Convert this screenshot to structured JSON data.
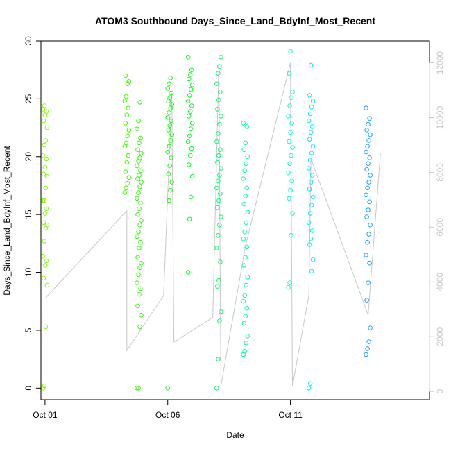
{
  "chart_data": {
    "type": "scatter",
    "title": "ATOM3 Southbound Days_Since_Land_BdyInf_Most_Recent",
    "xlabel": "Date",
    "ylabel": "Days_Since_Land_BdyInf_Most_Recent",
    "xlim": [
      "2014-09-30T20:00",
      "2014-10-16T16:00"
    ],
    "ylim": [
      -1,
      30
    ],
    "y2lim": [
      -300,
      12800
    ],
    "x_ticks": [
      {
        "at": "2014-10-01T00:00",
        "label": "Oct 01"
      },
      {
        "at": "2014-10-06T00:00",
        "label": "Oct 06"
      },
      {
        "at": "2014-10-11T00:00",
        "label": "Oct 11"
      }
    ],
    "y_ticks": [
      0,
      5,
      10,
      15,
      20,
      25,
      30
    ],
    "y2_ticks": [
      0,
      2000,
      4000,
      6000,
      8000,
      10000,
      12000
    ],
    "grid": false,
    "legend": "none",
    "point_color_range": [
      "#80ff00",
      "#00ff40",
      "#00ffcc",
      "#00e0ff",
      "#0088ff"
    ],
    "secondary_line_color": "#c8c8c8",
    "clusters": [
      {
        "t": "2014-10-01T00:00",
        "color": "#80ff00",
        "values": [
          0,
          0.2,
          5.3,
          8.9,
          9.5,
          10.6,
          11,
          11.4,
          12.7,
          13.8,
          14.1,
          14.3,
          15.1,
          15.5,
          16.2,
          16.2,
          17.3,
          18.3,
          18.5,
          19.1,
          19.8,
          20.1,
          21.0,
          21.4,
          22.5,
          23.1,
          23.6,
          23.9,
          24.1,
          24.4
        ]
      },
      {
        "t": "2014-10-04T08:00",
        "color": "#40ff00",
        "values": [
          16.9,
          17.3,
          17.7,
          18.2,
          18.7,
          19.5,
          20.1,
          20.9,
          21.2,
          21.8,
          22.3,
          22.9,
          23.6,
          24.2,
          24.8,
          25.2,
          26.3,
          26.5,
          27.0
        ]
      },
      {
        "t": "2014-10-04T20:00",
        "color": "#2bff00",
        "values": [
          0,
          0,
          5.3,
          6.3,
          7.1,
          8.1,
          8.6,
          9.1,
          9.8,
          10.4,
          10.8,
          11.3,
          12.1,
          12.6,
          13.1,
          13.5,
          14.1,
          14.5,
          15.0,
          15.5,
          16.0,
          16.4,
          16.9,
          17.4,
          17.8,
          18.1,
          18.4,
          18.8,
          19.2,
          19.6,
          19.9,
          20.3,
          20.6,
          21.2,
          21.6,
          22.4,
          23.1,
          24.7
        ]
      },
      {
        "t": "2014-10-06T02:00",
        "color": "#10ff10",
        "values": [
          0,
          16.2,
          17.1,
          17.8,
          18.5,
          19.2,
          19.9,
          20.4,
          20.9,
          21.4,
          21.9,
          22.3,
          22.7,
          23.1,
          23.4,
          23.8,
          24.2,
          24.5,
          24.8,
          25.1,
          25.5,
          25.9,
          26.3,
          26.8
        ]
      },
      {
        "t": "2014-10-06T22:00",
        "color": "#00ff20",
        "values": [
          10.0,
          14.6,
          16.5,
          18.3,
          19.3,
          20.1,
          20.7,
          21.3,
          21.8,
          22.4,
          22.9,
          23.5,
          23.9,
          24.4,
          24.8,
          25.3,
          25.8,
          26.2,
          26.7,
          27.1,
          27.5,
          28.6
        ]
      },
      {
        "t": "2014-10-08T02:00",
        "color": "#00ff70",
        "values": [
          0,
          2.5,
          5.8,
          6.6,
          8.8,
          9.3,
          10.9,
          12.1,
          13.2,
          14.1,
          14.8,
          15.6,
          16.2,
          16.8,
          17.3,
          17.9,
          18.4,
          19.0,
          19.5,
          20.1,
          20.6,
          21.3,
          22.0,
          22.8,
          23.5,
          24.1,
          24.9,
          25.6,
          26.3,
          27.2,
          27.8,
          28.6
        ]
      },
      {
        "t": "2014-10-09T04:00",
        "color": "#00ffa0",
        "values": [
          2.9,
          3.2,
          3.9,
          4.5,
          5.6,
          6.2,
          6.9,
          7.5,
          8.0,
          8.9,
          9.6,
          10.6,
          11.3,
          12.2,
          12.9,
          13.5,
          14.3,
          15.2,
          15.9,
          16.6,
          17.3,
          18.1,
          18.8,
          19.4,
          20.0,
          20.6,
          21.2,
          22.6,
          22.9
        ]
      },
      {
        "t": "2014-10-11T00:00",
        "color": "#00ffe0",
        "values": [
          8.7,
          9.1,
          13.2,
          15.1,
          16.4,
          17.1,
          17.9,
          18.6,
          19.4,
          20.1,
          20.8,
          21.3,
          22.1,
          22.9,
          23.5,
          24.4,
          25.1,
          25.6,
          27.2,
          29.1
        ]
      },
      {
        "t": "2014-10-11T20:00",
        "color": "#00f0ff",
        "values": [
          0,
          0.4,
          10.1,
          11.1,
          12.4,
          12.9,
          13.6,
          14.3,
          15.1,
          15.8,
          16.5,
          17.2,
          17.8,
          18.4,
          19.0,
          19.7,
          20.3,
          20.9,
          21.5,
          22.1,
          22.6,
          23.1,
          23.7,
          24.3,
          24.8,
          25.3,
          27.9
        ]
      },
      {
        "t": "2014-10-14T04:00",
        "color": "#1aa6ff",
        "values": [
          2.9,
          3.4,
          4.0,
          5.2,
          7.6,
          9.1,
          10.8,
          11.5,
          12.6,
          13.3,
          14.1,
          14.8,
          15.4,
          16.1,
          16.7,
          17.3,
          17.8,
          18.4,
          18.9,
          19.4,
          19.9,
          20.4,
          20.9,
          21.4,
          21.9,
          22.3,
          22.8,
          23.3,
          24.2
        ]
      }
    ],
    "secondary_series": [
      {
        "t": "2014-10-01T00:00",
        "v": 3400
      },
      {
        "t": "2014-10-04T08:00",
        "v": 6600
      },
      {
        "t": "2014-10-04T08:00",
        "v": 1500
      },
      {
        "t": "2014-10-05T20:00",
        "v": 3500
      },
      {
        "t": "2014-10-06T04:00",
        "v": 10900
      },
      {
        "t": "2014-10-06T06:00",
        "v": 1800
      },
      {
        "t": "2014-10-07T20:00",
        "v": 2700
      },
      {
        "t": "2014-10-08T02:00",
        "v": 11900
      },
      {
        "t": "2014-10-08T04:00",
        "v": 200
      },
      {
        "t": "2014-10-09T04:00",
        "v": 5300
      },
      {
        "t": "2014-10-11T00:00",
        "v": 12000
      },
      {
        "t": "2014-10-11T02:00",
        "v": 200
      },
      {
        "t": "2014-10-11T18:00",
        "v": 3500
      },
      {
        "t": "2014-10-11T20:00",
        "v": 8500
      },
      {
        "t": "2014-10-14T04:00",
        "v": 2800
      },
      {
        "t": "2014-10-14T16:00",
        "v": 8700
      }
    ]
  }
}
